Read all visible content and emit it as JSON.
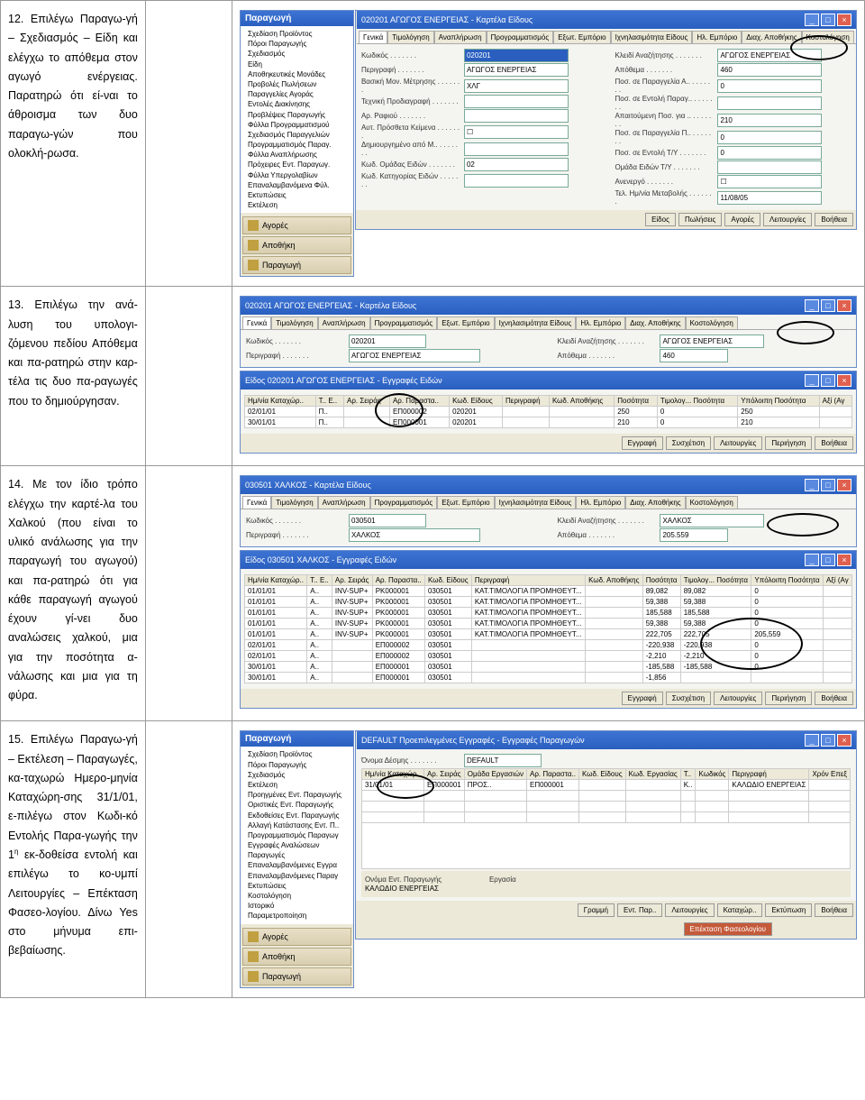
{
  "rows": [
    {
      "num": "12.",
      "text": "Επιλέγω Παραγω-γή – Σχεδιασμός – Είδη και ελέγχω το απόθεμα στον αγωγό ενέργειας. Παρατηρώ ότι εί-ναι το άθροισμα των δυο παραγω-γών που ολοκλή-ρωσα."
    },
    {
      "num": "13.",
      "text": "Επιλέγω την ανά-λυση του υπολογι-ζόμενου πεδίου Απόθεμα και πα-ρατηρώ στην καρ-τέλα τις δυο πα-ραγωγές που το δημιούργησαν."
    },
    {
      "num": "14.",
      "text": "Με τον ίδιο τρόπο ελέγχω την καρτέ-λα του Χαλκού (που είναι το υλικό ανάλωσης για την παραγωγή του αγωγού) και πα-ρατηρώ ότι για κάθε παραγωγή αγωγού έχουν γί-νει δυο αναλώσεις χαλκού, μια για την ποσότητα α-νάλωσης και μια για τη φύρα."
    },
    {
      "num": "15.",
      "text_parts": [
        "Επιλέγω Παραγω-γή – Εκτέλεση – Παραγωγές, κα-ταχωρώ Ημερο-μηνία Καταχώρη-σης 31/1/01, ε-πιλέγω στον Κωδι-κό Εντολής Παρα-γωγής την 1",
        "η",
        " εκ-δοθείσα εντολή και επιλέγω το κο-υμπί Λειτουργίες – Επέκταση Φασεο-λογίου. Δίνω Yes στο μήνυμα επι-βεβαίωσης."
      ]
    }
  ],
  "tabset": [
    "Γενικά",
    "Τιμολόγηση",
    "Αναπλήρωση",
    "Προγραμματισμός",
    "Εξωτ. Εμπόριο",
    "Ιχνηλασιμότητα Είδους",
    "Ηλ. Εμπόριο",
    "Διαχ. Αποθήκης",
    "Κοστολόγηση"
  ],
  "win12": {
    "title": "020201 ΑΓΩΓΟΣ ΕΝΕΡΓΕΙΑΣ - Καρτέλα Είδους",
    "sideTitle": "Παραγωγή",
    "tree": [
      "Σχεδίαση Προϊόντος",
      "Πόροι Παραγωγής",
      "Σχεδιασμός",
      "  Είδη",
      "  Αποθηκευτικές Μονάδες",
      "  Προβολές Πωλήσεων",
      "  Παραγγελίες Αγοράς",
      "  Εντολές Διακίνησης",
      "  Προβλέψεις Παραγωγής",
      "  Φύλλα Προγραμματισμού",
      "  Σχεδιασμός Παραγγελιών",
      "  Προγραμματισμός Παραγ.",
      "  Φύλλα Αναπλήρωσης",
      "  Πρόχειρες Εντ. Παραγωγ.",
      "  Φύλλα Υπεργολαβίων",
      "  Επαναλαμβανόμενα Φύλ.",
      "Εκτυπώσεις",
      "Εκτέλεση"
    ],
    "foot": [
      "Αγορές",
      "Αποθήκη",
      "Παραγωγή"
    ],
    "left": [
      [
        "Κωδικός",
        "020201"
      ],
      [
        "Περιγραφή",
        "ΑΓΩΓΟΣ ΕΝΕΡΓΕΙΑΣ"
      ],
      [
        "Βασική Μον. Μέτρησης",
        "ΧΛΓ"
      ],
      [
        "Τεχνική Προδιαγραφή",
        ""
      ],
      [
        "Αρ. Ραφιού",
        ""
      ],
      [
        "Αυτ. Πρόσθετα Κείμενα",
        "☐"
      ],
      [
        "Δημιουργημένο από Μ..",
        ""
      ],
      [
        "Κωδ. Ομάδας Ειδών",
        "02"
      ],
      [
        "Κωδ. Κατηγορίας Ειδών",
        ""
      ]
    ],
    "right": [
      [
        "Κλειδί Αναζήτησης",
        "ΑΓΩΓΟΣ ΕΝΕΡΓΕΙΑΣ"
      ],
      [
        "Απόθεμα",
        "460"
      ],
      [
        "Ποσ. σε Παραγγελία Α..",
        "0"
      ],
      [
        "Ποσ. σε Εντολή Παραγ..",
        ""
      ],
      [
        "Απαιτούμενη Ποσ. για ..",
        "210"
      ],
      [
        "Ποσ. σε Παραγγελία Π..",
        "0"
      ],
      [
        "Ποσ. σε Εντολή Τ/Υ",
        "0"
      ],
      [
        "Ομάδα Ειδών Τ/Υ",
        ""
      ],
      [
        "Ανενεργό",
        "☐"
      ],
      [
        "Τελ. Ημ/νία Μεταβολής",
        "11/08/05"
      ]
    ],
    "btns": [
      "Είδος",
      "Πωλήσεις",
      "Αγορές",
      "Λειτουργίες",
      "Βοήθεια"
    ]
  },
  "win13": {
    "title": "020201 ΑΓΩΓΟΣ ΕΝΕΡΓΕΙΑΣ - Καρτέλα Είδους",
    "kod": "020201",
    "desc": "ΑΓΩΓΟΣ ΕΝΕΡΓΕΙΑΣ",
    "klab": "Κλειδί Αναζήτησης",
    "kval": "ΑΓΩΓΟΣ ΕΝΕΡΓΕΙΑΣ",
    "alab": "Απόθεμα",
    "aval": "460",
    "sub": "Είδος 020201 ΑΓΩΓΟΣ ΕΝΕΡΓΕΙΑΣ - Εγγραφές Ειδών",
    "cols": [
      "Ημ/νία Καταχώρ..",
      "Τ.. Ε..",
      "Αρ. Σειράς",
      "Αρ. Παραστα..",
      "Κωδ. Είδους",
      "Περιγραφή",
      "Κωδ. Αποθήκης",
      "Ποσότητα",
      "Τιμολογ... Ποσότητα",
      "Υπόλοιπη Ποσότητα",
      "Αξί (Αγ"
    ],
    "data": [
      [
        "02/01/01",
        "Π..",
        "",
        "ΕΠ000002",
        "020201",
        "",
        "",
        "250",
        "0",
        "250",
        ""
      ],
      [
        "30/01/01",
        "Π..",
        "",
        "ΕΠ000001",
        "020201",
        "",
        "",
        "210",
        "0",
        "210",
        ""
      ]
    ],
    "btns": [
      "Εγγραφή",
      "Συσχέτιση",
      "Λειτουργίες",
      "Περιήγηση",
      "Βοήθεια"
    ]
  },
  "win14": {
    "title": "030501 ΧΑΛΚΟΣ - Καρτέλα Είδους",
    "kod": "030501",
    "desc": "ΧΑΛΚΟΣ",
    "klab": "Κλειδί Αναζήτησης",
    "kval": "ΧΑΛΚΟΣ",
    "alab": "Απόθεμα",
    "aval": "205.559",
    "sub": "Είδος 030501 ΧΑΛΚΟΣ - Εγγραφές Ειδών",
    "cols": [
      "Ημ/νία Καταχώρ..",
      "Τ.. Ε..",
      "Αρ. Σειράς",
      "Αρ. Παραστα..",
      "Κωδ. Είδους",
      "Περιγραφή",
      "Κωδ. Αποθήκης",
      "Ποσότητα",
      "Τιμολογ... Ποσότητα",
      "Υπόλοιπη Ποσότητα",
      "Αξί (Αγ"
    ],
    "data": [
      [
        "01/01/01",
        "Α..",
        "INV-SUP+",
        "PK000001",
        "030501",
        "ΚΑΤ.ΤΙΜΟΛΟΓΙΑ ΠΡΟΜΗΘΕΥΤ...",
        "",
        "89,082",
        "89,082",
        "0",
        ""
      ],
      [
        "01/01/01",
        "Α..",
        "INV-SUP+",
        "PK000001",
        "030501",
        "ΚΑΤ.ΤΙΜΟΛΟΓΙΑ ΠΡΟΜΗΘΕΥΤ...",
        "",
        "59,388",
        "59,388",
        "0",
        ""
      ],
      [
        "01/01/01",
        "Α..",
        "INV-SUP+",
        "PK000001",
        "030501",
        "ΚΑΤ.ΤΙΜΟΛΟΓΙΑ ΠΡΟΜΗΘΕΥΤ...",
        "",
        "185,588",
        "185,588",
        "0",
        ""
      ],
      [
        "01/01/01",
        "Α..",
        "INV-SUP+",
        "PK000001",
        "030501",
        "ΚΑΤ.ΤΙΜΟΛΟΓΙΑ ΠΡΟΜΗΘΕΥΤ...",
        "",
        "59,388",
        "59,388",
        "0",
        ""
      ],
      [
        "01/01/01",
        "Α..",
        "INV-SUP+",
        "PK000001",
        "030501",
        "ΚΑΤ.ΤΙΜΟΛΟΓΙΑ ΠΡΟΜΗΘΕΥΤ...",
        "",
        "222,705",
        "222,705",
        "205,559",
        ""
      ],
      [
        "02/01/01",
        "Α..",
        "",
        "ΕΠ000002",
        "030501",
        "",
        "",
        "-220,938",
        "-220,938",
        "0",
        ""
      ],
      [
        "02/01/01",
        "Α..",
        "",
        "ΕΠ000002",
        "030501",
        "",
        "",
        "-2,210",
        "-2,210",
        "0",
        ""
      ],
      [
        "30/01/01",
        "Α..",
        "",
        "ΕΠ000001",
        "030501",
        "",
        "",
        "-185,588",
        "-185,588",
        "0",
        ""
      ],
      [
        "30/01/01",
        "Α..",
        "",
        "ΕΠ000001",
        "030501",
        "",
        "",
        "-1,856",
        "",
        "",
        ""
      ]
    ],
    "btns": [
      "Εγγραφή",
      "Συσχέτιση",
      "Λειτουργίες",
      "Περιήγηση",
      "Βοήθεια"
    ]
  },
  "win15": {
    "sideTitle": "Παραγωγή",
    "tree": [
      "Σχεδίαση Προϊόντος",
      "Πόροι Παραγωγής",
      "Σχεδιασμός",
      "Εκτέλεση",
      "  Προηγμένες Εντ. Παραγωγής",
      "  Οριστικές Εντ. Παραγωγής",
      "  Εκδοθείσες Εντ. Παραγωγής",
      "  Αλλαγή Κατάστασης Εντ. Π..",
      "  Προγραμματισμός Παραγωγ",
      "  Εγγραφές Αναλώσεων",
      "  Παραγωγές",
      "  Επαναλαμβανόμενες Εγγρα",
      "  Επαναλαμβανόμενες Παραγ",
      "Εκτυπώσεις",
      "Κοστολόγηση",
      "Ιστορικό",
      "Παραμετροποίηση"
    ],
    "foot": [
      "Αγορές",
      "Αποθήκη",
      "Παραγωγή"
    ],
    "title": "DEFAULT Προεπιλεγμένες Εγγραφές - Εγγραφές Παραγωγών",
    "nameLbl": "Όνομα Δέσμης",
    "nameVal": "DEFAULT",
    "cols": [
      "Ημ/νία Καταχώρ..",
      "Αρ. Σειράς",
      "Ομάδα Εργασιών",
      "Αρ. Παραστα..",
      "Κωδ. Είδους",
      "Κωδ. Εργασίας",
      "Τ..",
      "Κωδικός",
      "Περιγραφή",
      "Χρόν Επεξ"
    ],
    "data": [
      [
        "31/01/01",
        "ΕΠ000001",
        "ΠΡΟΣ..",
        "ΕΠ000001",
        "",
        "",
        "Κ..",
        "",
        "ΚΑΛΩΔΙΟ ΕΝΕΡΓΕΙΑΣ",
        ""
      ]
    ],
    "ftlab1": "Ονόμα Εντ. Παραγωγής",
    "ftlab2": "Εργασία",
    "ftval1": "ΚΑΛΩΔΙΟ ΕΝΕΡΓΕΙΑΣ",
    "btns": [
      "Γραμμή",
      "Εντ. Παρ..",
      "Λειτουργίες",
      "Καταχώρ..",
      "Εκτύπωση",
      "Βοήθεια"
    ],
    "hlbtn": "Επέκταση Φασεολογίου"
  }
}
